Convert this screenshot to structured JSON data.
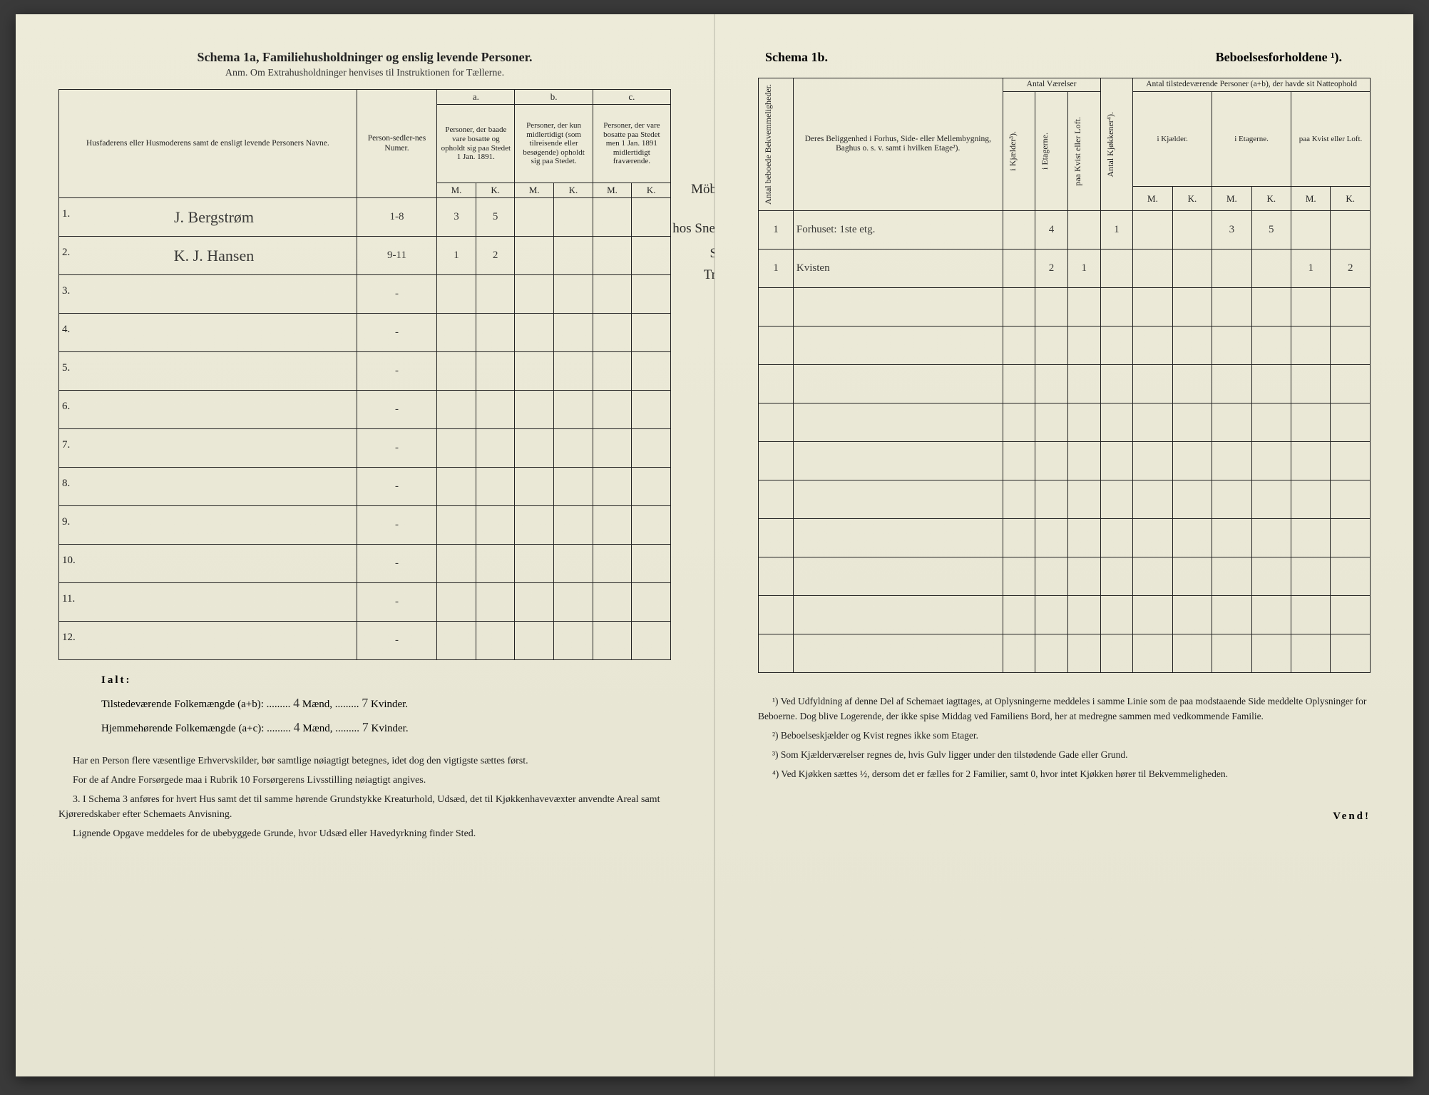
{
  "left": {
    "title": "Schema 1a, Familiehusholdninger og enslig levende Personer.",
    "anm": "Anm. Om Extrahusholdninger henvises til Instruktionen for Tællerne.",
    "headers": {
      "name": "Husfaderens eller Husmoderens samt de ensligt levende Personers Navne.",
      "numer": "Person-sedler-nes Numer.",
      "a_top": "a.",
      "a": "Personer, der baade vare bosatte og opholdt sig paa Stedet 1 Jan. 1891.",
      "b_top": "b.",
      "b": "Personer, der kun midlertidigt (som tilreisende eller besøgende) opholdt sig paa Stedet.",
      "c_top": "c.",
      "c": "Personer, der vare bosatte paa Stedet men 1 Jan. 1891 midlertidigt fraværende.",
      "M": "M.",
      "K": "K."
    },
    "rows": [
      {
        "n": "1.",
        "name": "J. Bergstrøm",
        "num": "1-8",
        "aM": "3",
        "aK": "5",
        "bM": "",
        "bK": "",
        "cM": "",
        "cK": ""
      },
      {
        "n": "2.",
        "name": "K. J. Hansen",
        "num": "9-11",
        "aM": "1",
        "aK": "2",
        "bM": "",
        "bK": "",
        "cM": "",
        "cK": ""
      },
      {
        "n": "3.",
        "name": "",
        "num": "-",
        "aM": "",
        "aK": "",
        "bM": "",
        "bK": "",
        "cM": "",
        "cK": ""
      },
      {
        "n": "4.",
        "name": "",
        "num": "-",
        "aM": "",
        "aK": "",
        "bM": "",
        "bK": "",
        "cM": "",
        "cK": ""
      },
      {
        "n": "5.",
        "name": "",
        "num": "-",
        "aM": "",
        "aK": "",
        "bM": "",
        "bK": "",
        "cM": "",
        "cK": ""
      },
      {
        "n": "6.",
        "name": "",
        "num": "-",
        "aM": "",
        "aK": "",
        "bM": "",
        "bK": "",
        "cM": "",
        "cK": ""
      },
      {
        "n": "7.",
        "name": "",
        "num": "-",
        "aM": "",
        "aK": "",
        "bM": "",
        "bK": "",
        "cM": "",
        "cK": ""
      },
      {
        "n": "8.",
        "name": "",
        "num": "-",
        "aM": "",
        "aK": "",
        "bM": "",
        "bK": "",
        "cM": "",
        "cK": ""
      },
      {
        "n": "9.",
        "name": "",
        "num": "-",
        "aM": "",
        "aK": "",
        "bM": "",
        "bK": "",
        "cM": "",
        "cK": ""
      },
      {
        "n": "10.",
        "name": "",
        "num": "-",
        "aM": "",
        "aK": "",
        "bM": "",
        "bK": "",
        "cM": "",
        "cK": ""
      },
      {
        "n": "11.",
        "name": "",
        "num": "-",
        "aM": "",
        "aK": "",
        "bM": "",
        "bK": "",
        "cM": "",
        "cK": ""
      },
      {
        "n": "12.",
        "name": "",
        "num": "-",
        "aM": "",
        "aK": "",
        "bM": "",
        "bK": "",
        "cM": "",
        "cK": ""
      }
    ],
    "margin_notes": {
      "top": "Möbel-Snedker.",
      "l1": "hos Snedkermester.",
      "l2": "Smed ved",
      "l3": "Trævliberi."
    },
    "ialt": {
      "label": "Ialt:",
      "line1a": "Tilstedeværende Folkemængde (a+b): .........",
      "line1m": "4",
      "line1mid": " Mænd, .........",
      "line1k": "7",
      "line1end": " Kvinder.",
      "line2a": "Hjemmehørende Folkemængde (a+c): .........",
      "line2m": "4",
      "line2mid": " Mænd, .........",
      "line2k": "7",
      "line2end": " Kvinder."
    },
    "para1": "Har en Person flere væsentlige Erhvervskilder, bør samtlige nøiagtigt betegnes, idet dog den vigtigste sættes først.",
    "para2": "For de af Andre Forsørgede maa i Rubrik 10 Forsørgerens Livsstilling nøiagtigt angives.",
    "para3": "3. I Schema 3 anføres for hvert Hus samt det til samme hørende Grundstykke Kreaturhold, Udsæd, det til Kjøkkenhavevæxter anvendte Areal samt Kjøreredskaber efter Schemaets Anvisning.",
    "para4": "Lignende Opgave meddeles for de ubebyggede Grunde, hvor Udsæd eller Havedyrkning finder Sted."
  },
  "right": {
    "title_l": "Schema 1b.",
    "title_r": "Beboelsesforholdene ¹).",
    "headers": {
      "bekv": "Antal beboede Bekvemmeligheder.",
      "belig": "Deres Beliggenhed i Forhus, Side- eller Mellembygning, Baghus o. s. v. samt i hvilken Etage²).",
      "vaerelser": "Antal Værelser",
      "kjelder": "i Kjælder³).",
      "etagerne": "i Etagerne.",
      "kvist": "paa Kvist eller Loft.",
      "kjokken": "Antal Kjøkkener⁴).",
      "natte_top": "Antal tilstedeværende Personer (a+b), der havde sit Natteophold",
      "n_kjael": "i Kjælder.",
      "n_etag": "i Etagerne.",
      "n_kvist": "paa Kvist eller Loft.",
      "M": "M.",
      "K": "K."
    },
    "rows": [
      {
        "bekv": "1",
        "belig": "Forhuset: 1ste etg.",
        "kj": "",
        "et": "4",
        "kv": "",
        "kk": "1",
        "nkM": "",
        "nkK": "",
        "neM": "3",
        "neK": "5",
        "nvM": "",
        "nvK": ""
      },
      {
        "bekv": "1",
        "belig": "Kvisten",
        "kj": "",
        "et": "2",
        "kv": "1",
        "kk": "",
        "nkM": "",
        "nkK": "",
        "neM": "",
        "neK": "",
        "nvM": "1",
        "nvK": "2"
      },
      {
        "bekv": "",
        "belig": "",
        "kj": "",
        "et": "",
        "kv": "",
        "kk": "",
        "nkM": "",
        "nkK": "",
        "neM": "",
        "neK": "",
        "nvM": "",
        "nvK": ""
      },
      {
        "bekv": "",
        "belig": "",
        "kj": "",
        "et": "",
        "kv": "",
        "kk": "",
        "nkM": "",
        "nkK": "",
        "neM": "",
        "neK": "",
        "nvM": "",
        "nvK": ""
      },
      {
        "bekv": "",
        "belig": "",
        "kj": "",
        "et": "",
        "kv": "",
        "kk": "",
        "nkM": "",
        "nkK": "",
        "neM": "",
        "neK": "",
        "nvM": "",
        "nvK": ""
      },
      {
        "bekv": "",
        "belig": "",
        "kj": "",
        "et": "",
        "kv": "",
        "kk": "",
        "nkM": "",
        "nkK": "",
        "neM": "",
        "neK": "",
        "nvM": "",
        "nvK": ""
      },
      {
        "bekv": "",
        "belig": "",
        "kj": "",
        "et": "",
        "kv": "",
        "kk": "",
        "nkM": "",
        "nkK": "",
        "neM": "",
        "neK": "",
        "nvM": "",
        "nvK": ""
      },
      {
        "bekv": "",
        "belig": "",
        "kj": "",
        "et": "",
        "kv": "",
        "kk": "",
        "nkM": "",
        "nkK": "",
        "neM": "",
        "neK": "",
        "nvM": "",
        "nvK": ""
      },
      {
        "bekv": "",
        "belig": "",
        "kj": "",
        "et": "",
        "kv": "",
        "kk": "",
        "nkM": "",
        "nkK": "",
        "neM": "",
        "neK": "",
        "nvM": "",
        "nvK": ""
      },
      {
        "bekv": "",
        "belig": "",
        "kj": "",
        "et": "",
        "kv": "",
        "kk": "",
        "nkM": "",
        "nkK": "",
        "neM": "",
        "neK": "",
        "nvM": "",
        "nvK": ""
      },
      {
        "bekv": "",
        "belig": "",
        "kj": "",
        "et": "",
        "kv": "",
        "kk": "",
        "nkM": "",
        "nkK": "",
        "neM": "",
        "neK": "",
        "nvM": "",
        "nvK": ""
      },
      {
        "bekv": "",
        "belig": "",
        "kj": "",
        "et": "",
        "kv": "",
        "kk": "",
        "nkM": "",
        "nkK": "",
        "neM": "",
        "neK": "",
        "nvM": "",
        "nvK": ""
      }
    ],
    "fn1": "¹) Ved Udfyldning af denne Del af Schemaet iagttages, at Oplysningerne meddeles i samme Linie som de paa modstaaende Side meddelte Oplysninger for Beboerne. Dog blive Logerende, der ikke spise Middag ved Familiens Bord, her at medregne sammen med vedkommende Familie.",
    "fn2": "²) Beboelseskjælder og Kvist regnes ikke som Etager.",
    "fn3": "³) Som Kjælderværelser regnes de, hvis Gulv ligger under den tilstødende Gade eller Grund.",
    "fn4": "⁴) Ved Kjøkken sættes ½, dersom det er fælles for 2 Familier, samt 0, hvor intet Kjøkken hører til Bekvemmeligheden.",
    "vend": "Vend!"
  }
}
